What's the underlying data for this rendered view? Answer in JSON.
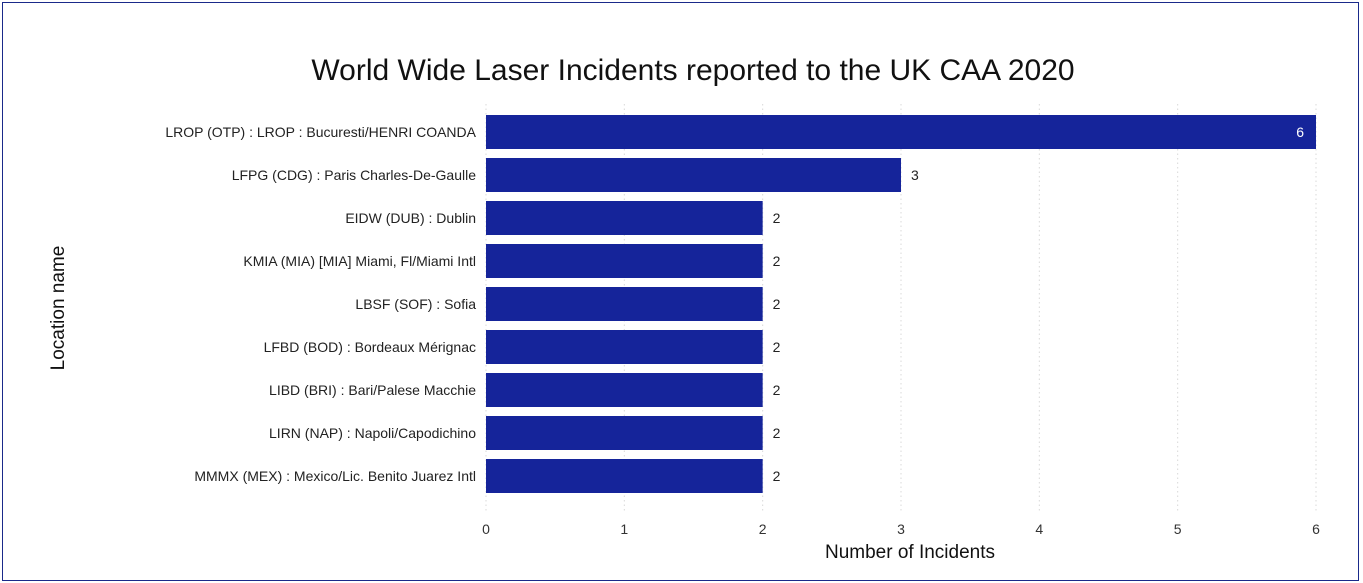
{
  "chart_data": {
    "type": "bar",
    "orientation": "horizontal",
    "title": "World Wide Laser Incidents reported to the UK CAA 2020",
    "xlabel": "Number of Incidents",
    "ylabel": "Location name",
    "categories": [
      "LROP (OTP) : LROP : Bucuresti/HENRI COANDA",
      "LFPG (CDG) : Paris Charles-De-Gaulle",
      "EIDW (DUB) : Dublin",
      "KMIA (MIA) [MIA] Miami, Fl/Miami Intl",
      "LBSF (SOF) : Sofia",
      "LFBD (BOD) : Bordeaux Mérignac",
      "LIBD (BRI) : Bari/Palese Macchie",
      "LIRN (NAP) : Napoli/Capodichino",
      "MMMX (MEX) : Mexico/Lic. Benito Juarez Intl"
    ],
    "values": [
      6,
      3,
      2,
      2,
      2,
      2,
      2,
      2,
      2
    ],
    "xlim": [
      0,
      6
    ],
    "xticks": [
      "0",
      "1",
      "2",
      "3",
      "4",
      "5",
      "6"
    ],
    "grid": true,
    "bar_color": "#15249a",
    "data_labels": true
  }
}
